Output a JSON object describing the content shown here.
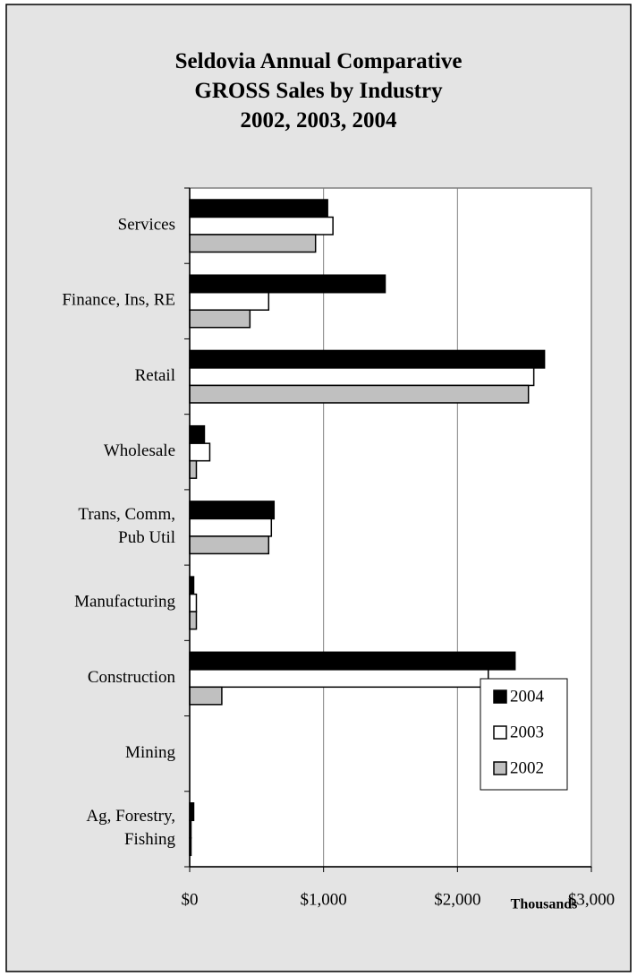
{
  "chart_data": {
    "type": "bar",
    "orientation": "horizontal",
    "title": "Seldovia Annual Comparative\nGROSS Sales by Industry\n2002, 2003, 2004",
    "x_label": "Thousands",
    "categories": [
      "Services",
      "Finance, Ins, RE",
      "Retail",
      "Wholesale",
      "Trans, Comm,\nPub Util",
      "Manufacturing",
      "Construction",
      "Mining",
      "Ag, Forestry,\nFishing"
    ],
    "series": [
      {
        "name": "2004",
        "color": "#000000",
        "values": [
          1030,
          1460,
          2650,
          110,
          630,
          30,
          2430,
          0,
          30
        ]
      },
      {
        "name": "2003",
        "color": "#ffffff",
        "values": [
          1070,
          590,
          2570,
          150,
          610,
          50,
          2230,
          0,
          10
        ]
      },
      {
        "name": "2002",
        "color": "#c0c0c0",
        "values": [
          940,
          450,
          2530,
          50,
          590,
          50,
          240,
          0,
          10
        ]
      }
    ],
    "xlim": [
      0,
      3000
    ],
    "xticks": [
      {
        "value": 0,
        "label": "$0"
      },
      {
        "value": 1000,
        "label": "$1,000"
      },
      {
        "value": 2000,
        "label": "$2,000"
      },
      {
        "value": 3000,
        "label": "$3,000"
      }
    ],
    "grid": true,
    "legend": "lower right"
  }
}
